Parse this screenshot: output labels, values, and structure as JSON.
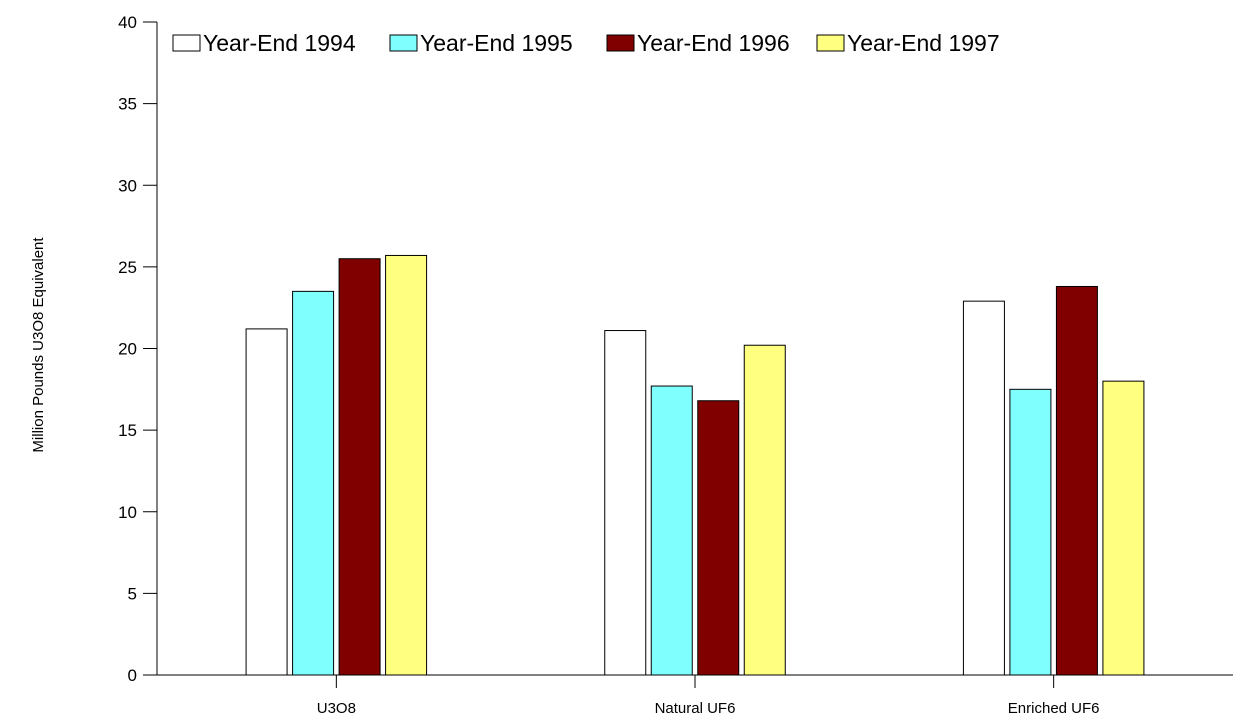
{
  "chart_data": {
    "type": "bar",
    "title": "",
    "xlabel": "",
    "ylabel": "Million Pounds U3O8 Equivalent",
    "ylim": [
      0,
      40
    ],
    "yticks": [
      0,
      5,
      10,
      15,
      20,
      25,
      30,
      35,
      40
    ],
    "categories": [
      "U3O8",
      "Natural UF6",
      "Enriched UF6"
    ],
    "series": [
      {
        "name": "Year-End 1994",
        "color": "#ffffff",
        "values": [
          21.2,
          21.1,
          22.9
        ]
      },
      {
        "name": "Year-End 1995",
        "color": "#80ffff",
        "values": [
          23.5,
          17.7,
          17.5
        ]
      },
      {
        "name": "Year-End 1996",
        "color": "#800000",
        "values": [
          25.5,
          16.8,
          23.8
        ]
      },
      {
        "name": "Year-End 1997",
        "color": "#ffff80",
        "values": [
          25.7,
          20.2,
          18.0
        ]
      }
    ],
    "legend_position": "top",
    "grid": false
  }
}
